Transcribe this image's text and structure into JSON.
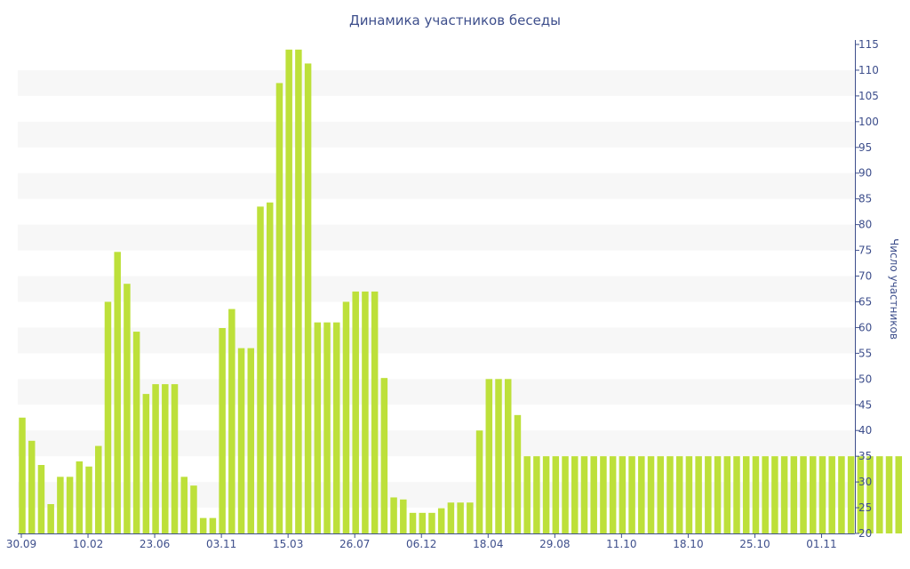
{
  "chart_data": {
    "type": "bar",
    "title": "Динамика участников беседы",
    "xlabel": "",
    "ylabel": "Число участников",
    "ylim": [
      20,
      115
    ],
    "y_ticks": [
      20,
      25,
      30,
      35,
      40,
      45,
      50,
      55,
      60,
      65,
      70,
      75,
      80,
      85,
      90,
      95,
      100,
      105,
      110,
      115
    ],
    "x_tick_labels": [
      {
        "index": 0,
        "label": "30.09"
      },
      {
        "index": 7,
        "label": "10.02"
      },
      {
        "index": 14,
        "label": "23.06"
      },
      {
        "index": 21,
        "label": "03.11"
      },
      {
        "index": 28,
        "label": "15.03"
      },
      {
        "index": 35,
        "label": "26.07"
      },
      {
        "index": 42,
        "label": "06.12"
      },
      {
        "index": 49,
        "label": "18.04"
      },
      {
        "index": 56,
        "label": "29.08"
      },
      {
        "index": 63,
        "label": "11.10"
      },
      {
        "index": 70,
        "label": "18.10"
      },
      {
        "index": 77,
        "label": "25.10"
      },
      {
        "index": 84,
        "label": "01.11"
      }
    ],
    "values": [
      42.5,
      38,
      33.3,
      25.7,
      31,
      31,
      34,
      33,
      37,
      65,
      74.7,
      68.5,
      59.2,
      47.1,
      49,
      49,
      49,
      31,
      29.3,
      23,
      23,
      59.9,
      63.6,
      56,
      56,
      83.5,
      84.3,
      107.5,
      114,
      114,
      111.3,
      61,
      61,
      61,
      65,
      67,
      67,
      67,
      50.2,
      27,
      26.6,
      24,
      24,
      24,
      24.9,
      26,
      26,
      26,
      40,
      50,
      50,
      50,
      43,
      35,
      35,
      35,
      35,
      35,
      35,
      35,
      35,
      35,
      35,
      35,
      35,
      35,
      35,
      35,
      35,
      35,
      35,
      35,
      35,
      35,
      35,
      35,
      35,
      35,
      35,
      35,
      35,
      35,
      35,
      35,
      35,
      35,
      35,
      35,
      35,
      35,
      35,
      35,
      35
    ],
    "grid": "alternating horizontal bands",
    "y_axis_position": "right",
    "legend": "none",
    "colors": {
      "bar": "#bde03a",
      "band": "#f7f7f7",
      "text": "#3e4f8c",
      "axis": "#3e4f8c"
    }
  }
}
